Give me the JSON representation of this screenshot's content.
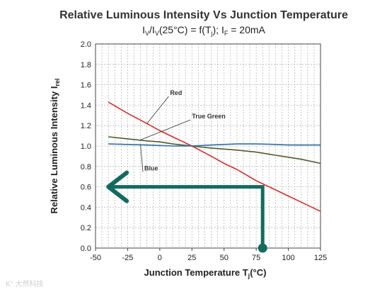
{
  "chart_data": {
    "type": "line",
    "title": "Relative Luminous Intensity Vs Junction Temperature",
    "subtitle": "I_V/I_V(25°C) = f(T_j); I_F = 20mA",
    "xlabel": "Junction Temperature T_j(°C)",
    "ylabel": "Relative Luminous Intensity I_rel",
    "xlim": [
      -50,
      125
    ],
    "ylim": [
      0,
      2.0
    ],
    "xticks": [
      "-50",
      "-25",
      "0",
      "25",
      "50",
      "75",
      "100",
      "125"
    ],
    "yticks": [
      "0.0",
      "0.2",
      "0.4",
      "0.6",
      "0.8",
      "1.0",
      "1.2",
      "1.4",
      "1.6",
      "1.8",
      "2.0"
    ],
    "grid": true,
    "series": [
      {
        "name": "Red",
        "color": "#d0312d",
        "x": [
          -40,
          -25,
          -10,
          0,
          10,
          25,
          40,
          50,
          60,
          75,
          90,
          100,
          110,
          125
        ],
        "y": [
          1.43,
          1.32,
          1.22,
          1.15,
          1.09,
          1.0,
          0.9,
          0.83,
          0.77,
          0.66,
          0.57,
          0.51,
          0.45,
          0.36
        ]
      },
      {
        "name": "True Green",
        "color": "#4e5b2c",
        "x": [
          -40,
          -25,
          -10,
          0,
          10,
          25,
          40,
          50,
          60,
          75,
          90,
          100,
          110,
          125
        ],
        "y": [
          1.09,
          1.07,
          1.05,
          1.04,
          1.02,
          1.0,
          0.98,
          0.97,
          0.96,
          0.94,
          0.91,
          0.89,
          0.87,
          0.83
        ]
      },
      {
        "name": "Blue",
        "color": "#2f6fa8",
        "x": [
          -40,
          -25,
          -10,
          0,
          10,
          25,
          40,
          50,
          60,
          75,
          90,
          100,
          110,
          125
        ],
        "y": [
          1.02,
          1.015,
          1.01,
          1.005,
          1.0,
          1.0,
          1.01,
          1.015,
          1.02,
          1.02,
          1.015,
          1.01,
          1.01,
          1.01
        ]
      }
    ],
    "series_labels": [
      {
        "text": "Red",
        "x": 8,
        "y": 1.5,
        "points_to": [
          -10,
          1.22
        ]
      },
      {
        "text": "True Green",
        "x": 25,
        "y": 1.27,
        "points_to": [
          -15,
          1.06
        ]
      },
      {
        "text": "Blue",
        "x": -12,
        "y": 0.76,
        "points_to": [
          -15,
          1.01
        ]
      }
    ],
    "annotation": {
      "color": "#136b5e",
      "path": [
        [
          80,
          0.0
        ],
        [
          80,
          0.6
        ],
        [
          -40,
          0.6
        ]
      ],
      "dot_at": [
        80,
        0.0
      ],
      "arrow_at": [
        -40,
        0.6
      ]
    },
    "watermark": "K° 大然科技"
  }
}
